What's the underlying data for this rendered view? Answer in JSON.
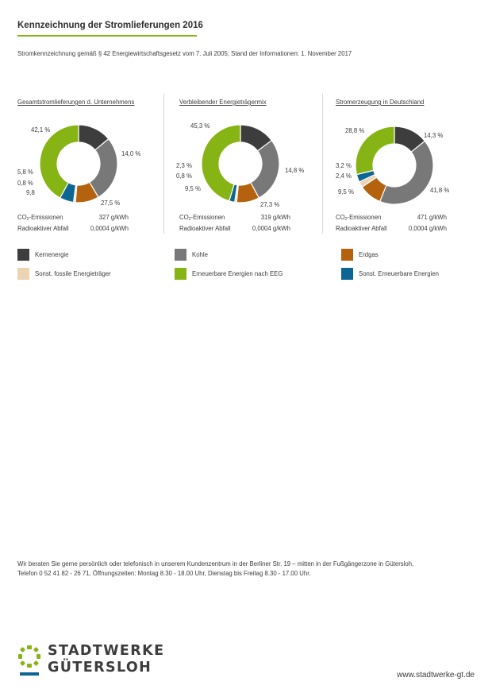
{
  "header": {
    "title": "Kennzeichnung der Stromlieferungen 2016",
    "subtitle": "Stromkennzeichnung gemäß § 42 Energiewirtschaftsgesetz vom 7. Juli 2005; Stand der Informationen: 1. November 2017"
  },
  "colors": {
    "accent": "#86b414",
    "kernenergie": "#3d3d3d",
    "kohle": "#787878",
    "erdgas": "#b5620e",
    "sonst_fossile": "#ecd3b2",
    "erneuerbare_eeg": "#86b414",
    "sonst_erneuerbare": "#0d6593"
  },
  "legend": [
    {
      "label": "Kernenergie",
      "color": "#3d3d3d"
    },
    {
      "label": "Kohle",
      "color": "#787878"
    },
    {
      "label": "Erdgas",
      "color": "#b5620e"
    },
    {
      "label": "Sonst. fossile Energieträger",
      "color": "#ecd3b2"
    },
    {
      "label": "Erneuerbare Energien nach EEG",
      "color": "#86b414"
    },
    {
      "label": "Sonst. Erneuerbare Energien",
      "color": "#0d6593"
    }
  ],
  "stats_labels": {
    "co2_prefix": "CO",
    "co2_sub": "2",
    "co2_suffix": "-Emissionen",
    "radio": "Radioaktiver Abfall"
  },
  "chart_data": [
    {
      "type": "pie",
      "title": "Gesamtstromlieferungen d. Unternehmens",
      "categories": [
        "Kernenergie",
        "Kohle",
        "Erdgas",
        "Sonst. fossile Energieträger",
        "Sonst. Erneuerbare Energien",
        "Erneuerbare Energien nach EEG"
      ],
      "values": [
        14.0,
        27.5,
        9.8,
        0.8,
        5.8,
        42.1
      ],
      "value_labels": [
        "14,0 %",
        "27,5 %",
        "9,8",
        "0,8 %",
        "5,8 %",
        "42,1 %"
      ],
      "co2": "327 g/kWh",
      "radio": "0,0004 g/kWh"
    },
    {
      "type": "pie",
      "title": "Verbleibender Energieträgermix",
      "categories": [
        "Kernenergie",
        "Kohle",
        "Erdgas",
        "Sonst. fossile Energieträger",
        "Sonst. Erneuerbare Energien",
        "Erneuerbare Energien nach EEG"
      ],
      "values": [
        14.8,
        27.3,
        9.5,
        0.8,
        2.3,
        45.3
      ],
      "value_labels": [
        "14,8 %",
        "27,3 %",
        "9,5 %",
        "0,8 %",
        "2,3 %",
        "45,3 %"
      ],
      "co2": "319 g/kWh",
      "radio": "0,0004 g/kWh"
    },
    {
      "type": "pie",
      "title": "Stromerzeugung in Deutschland",
      "categories": [
        "Kernenergie",
        "Kohle",
        "Erdgas",
        "Sonst. fossile Energieträger",
        "Sonst. Erneuerbare Energien",
        "Erneuerbare Energien nach EEG"
      ],
      "values": [
        14.3,
        41.8,
        9.5,
        2.4,
        3.2,
        28.8
      ],
      "value_labels": [
        "14,3 %",
        "41,8 %",
        "9,5 %",
        "2,4 %",
        "3,2 %",
        "28,8 %"
      ],
      "co2": "471 g/kWh",
      "radio": "0,0004 g/kWh"
    }
  ],
  "info": {
    "line1": "Wir beraten Sie gerne persönlich oder telefonisch in unserem Kundenzentrum in der Berliner Str. 19 – mitten in der Fußgängerzone in Gütersloh,",
    "line2": "Telefon 0 52 41 82 - 26 71, Öffnungszeiten: Montag 8.30 - 18.00 Uhr, Dienstag bis Freitag 8.30 - 17.00 Uhr."
  },
  "logo": {
    "line1": "STADTWERKE",
    "line2": "GÜTERSLOH"
  },
  "footer": {
    "url": "www.stadtwerke-gt.de"
  }
}
